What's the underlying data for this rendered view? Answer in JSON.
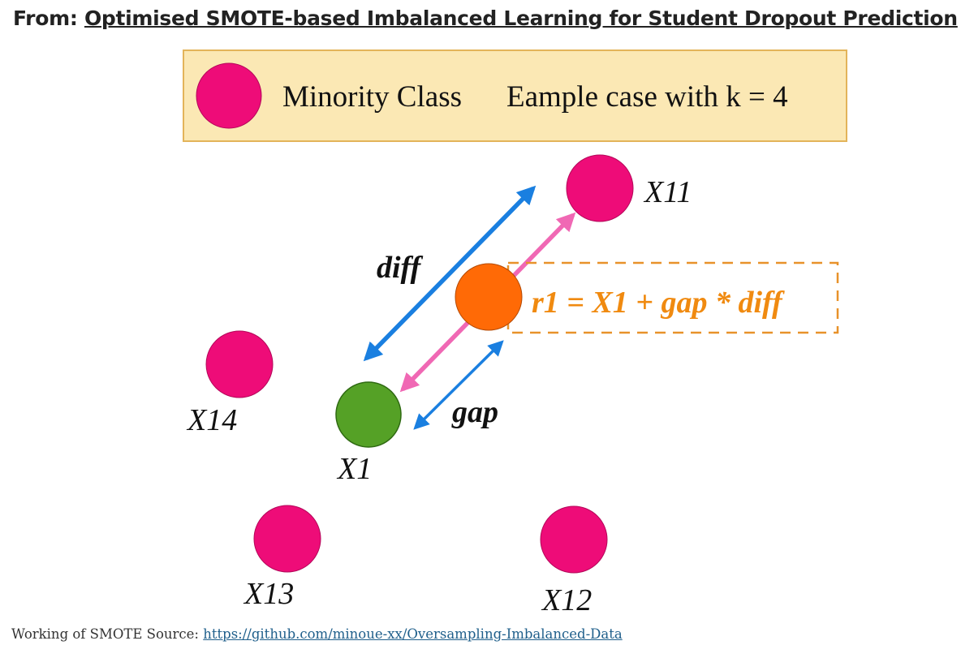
{
  "header": {
    "prefix": "From:",
    "title": "Optimised SMOTE-based Imbalanced Learning for Student Dropout Prediction"
  },
  "legend": {
    "minority_label": "Minority Class",
    "example_label": "Eample case with k = 4"
  },
  "points": {
    "x11": "X11",
    "x14": "X14",
    "x1": "X1",
    "x13": "X13",
    "x12": "X12"
  },
  "annotations": {
    "diff": "diff",
    "gap": "gap",
    "formula": "r1 = X1 + gap * diff"
  },
  "caption": {
    "text": "Working of SMOTE Source:",
    "link": "https://github.com/minoue-xx/Oversampling-Imbalanced-Data"
  },
  "colors": {
    "minority": "#ee0c78",
    "synthetic": "#ff6a06",
    "seed": "#55a126",
    "blue_arrow": "#1a7fe0",
    "pink_arrow": "#f068b4",
    "formula_text": "#f08a10",
    "legend_fill": "#fbe8b4",
    "legend_border": "#e3b45a"
  }
}
